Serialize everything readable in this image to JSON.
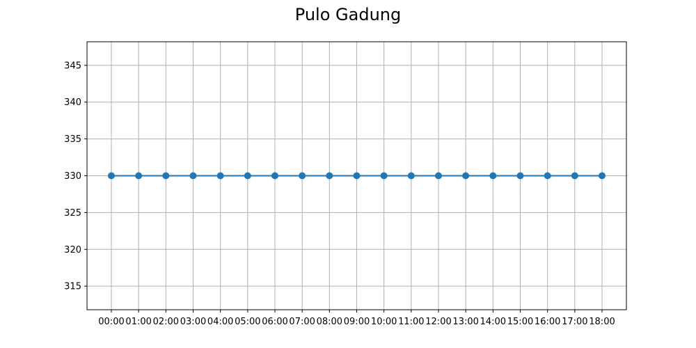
{
  "chart_data": {
    "type": "line",
    "title": "Pulo Gadung",
    "xlabel": "",
    "ylabel": "",
    "categories": [
      "00:00",
      "01:00",
      "02:00",
      "03:00",
      "04:00",
      "05:00",
      "06:00",
      "07:00",
      "08:00",
      "09:00",
      "10:00",
      "11:00",
      "12:00",
      "13:00",
      "14:00",
      "15:00",
      "16:00",
      "17:00",
      "18:00"
    ],
    "series": [
      {
        "values": [
          330,
          330,
          330,
          330,
          330,
          330,
          330,
          330,
          330,
          330,
          330,
          330,
          330,
          330,
          330,
          330,
          330,
          330,
          330
        ]
      }
    ],
    "ylim": [
      311.8,
      348.2
    ],
    "yticks": [
      315,
      320,
      325,
      330,
      335,
      340,
      345
    ],
    "grid": true,
    "line_color": "#1f77b4",
    "marker": "circle"
  }
}
